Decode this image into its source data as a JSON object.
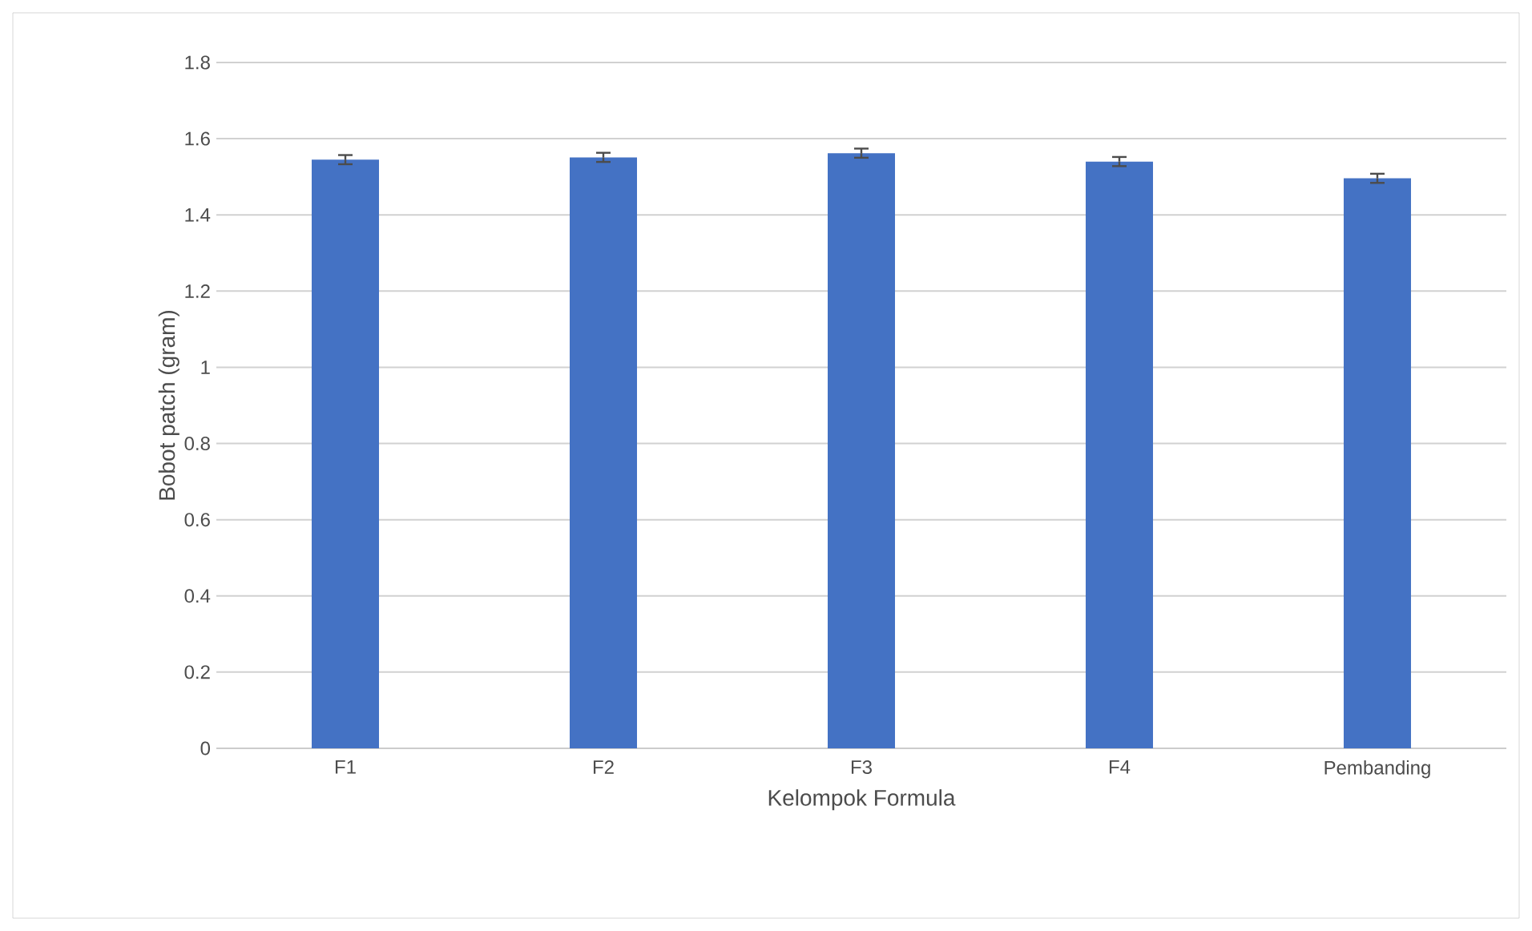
{
  "chart_data": {
    "type": "bar",
    "xlabel": "Kelompok Formula",
    "ylabel": "Bobot patch (gram)",
    "categories": [
      "F1",
      "F2",
      "F3",
      "F4",
      "Pembanding"
    ],
    "values": [
      1.545,
      1.551,
      1.562,
      1.54,
      1.496
    ],
    "errors": [
      0.012,
      0.012,
      0.012,
      0.012,
      0.012
    ],
    "color": "#4472c4",
    "ylim": [
      0,
      1.8
    ],
    "yticks": [
      0,
      0.2,
      0.4,
      0.6,
      0.8,
      1,
      1.2,
      1.4,
      1.6,
      1.8
    ],
    "grid": "y"
  }
}
